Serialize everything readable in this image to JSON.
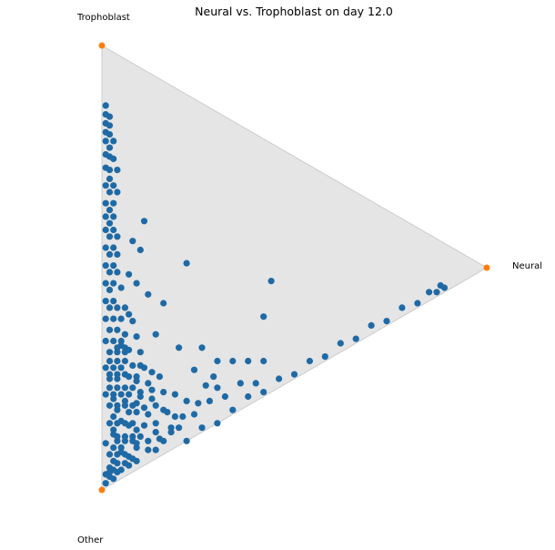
{
  "chart_data": {
    "type": "scatter",
    "title": "Neural vs. Trophoblast on day 12.0",
    "coordinate_system": "ternary barycentric (fractions of Trophoblast, Neural, Other)",
    "vertices": [
      {
        "name": "Trophoblast",
        "color": "#ff7f0e"
      },
      {
        "name": "Neural",
        "color": "#ff7f0e"
      },
      {
        "name": "Other",
        "color": "#ff7f0e"
      }
    ],
    "triangle_fill": "#e5e5e5",
    "triangle_stroke": "#cccccc",
    "point_color": "#1f6aa5",
    "grid": false,
    "legend": "none",
    "points_note": "each point is [Trophoblast, Neural, Other] fraction, summing to 1",
    "points": [
      [
        0.86,
        0.01,
        0.13
      ],
      [
        0.84,
        0.01,
        0.15
      ],
      [
        0.83,
        0.02,
        0.15
      ],
      [
        0.82,
        0.01,
        0.17
      ],
      [
        0.81,
        0.02,
        0.17
      ],
      [
        0.8,
        0.01,
        0.19
      ],
      [
        0.79,
        0.02,
        0.19
      ],
      [
        0.78,
        0.01,
        0.21
      ],
      [
        0.77,
        0.03,
        0.2
      ],
      [
        0.76,
        0.02,
        0.22
      ],
      [
        0.75,
        0.01,
        0.24
      ],
      [
        0.74,
        0.02,
        0.24
      ],
      [
        0.73,
        0.03,
        0.24
      ],
      [
        0.72,
        0.01,
        0.27
      ],
      [
        0.71,
        0.02,
        0.27
      ],
      [
        0.7,
        0.04,
        0.26
      ],
      [
        0.69,
        0.02,
        0.29
      ],
      [
        0.68,
        0.01,
        0.31
      ],
      [
        0.67,
        0.03,
        0.3
      ],
      [
        0.66,
        0.02,
        0.32
      ],
      [
        0.65,
        0.04,
        0.31
      ],
      [
        0.64,
        0.01,
        0.35
      ],
      [
        0.63,
        0.03,
        0.34
      ],
      [
        0.62,
        0.02,
        0.36
      ],
      [
        0.61,
        0.01,
        0.38
      ],
      [
        0.6,
        0.03,
        0.37
      ],
      [
        0.59,
        0.02,
        0.39
      ],
      [
        0.58,
        0.01,
        0.41
      ],
      [
        0.57,
        0.03,
        0.4
      ],
      [
        0.56,
        0.02,
        0.42
      ],
      [
        0.55,
        0.04,
        0.41
      ],
      [
        0.54,
        0.01,
        0.45
      ],
      [
        0.53,
        0.03,
        0.44
      ],
      [
        0.52,
        0.02,
        0.46
      ],
      [
        0.51,
        0.04,
        0.45
      ],
      [
        0.5,
        0.01,
        0.49
      ],
      [
        0.49,
        0.03,
        0.48
      ],
      [
        0.48,
        0.02,
        0.5
      ],
      [
        0.47,
        0.04,
        0.49
      ],
      [
        0.46,
        0.01,
        0.53
      ],
      [
        0.45,
        0.03,
        0.52
      ],
      [
        0.44,
        0.02,
        0.54
      ],
      [
        0.43,
        0.05,
        0.52
      ],
      [
        0.42,
        0.01,
        0.57
      ],
      [
        0.41,
        0.03,
        0.56
      ],
      [
        0.4,
        0.02,
        0.58
      ],
      [
        0.39,
        0.04,
        0.57
      ],
      [
        0.38,
        0.01,
        0.61
      ],
      [
        0.37,
        0.03,
        0.6
      ],
      [
        0.36,
        0.05,
        0.59
      ],
      [
        0.35,
        0.02,
        0.63
      ],
      [
        0.34,
        0.04,
        0.62
      ],
      [
        0.33,
        0.01,
        0.66
      ],
      [
        0.32,
        0.03,
        0.65
      ],
      [
        0.31,
        0.05,
        0.64
      ],
      [
        0.3,
        0.02,
        0.68
      ],
      [
        0.29,
        0.04,
        0.67
      ],
      [
        0.28,
        0.06,
        0.66
      ],
      [
        0.27,
        0.01,
        0.72
      ],
      [
        0.26,
        0.03,
        0.71
      ],
      [
        0.25,
        0.05,
        0.7
      ],
      [
        0.24,
        0.02,
        0.74
      ],
      [
        0.23,
        0.04,
        0.73
      ],
      [
        0.22,
        0.07,
        0.71
      ],
      [
        0.21,
        0.01,
        0.78
      ],
      [
        0.2,
        0.03,
        0.77
      ],
      [
        0.19,
        0.05,
        0.76
      ],
      [
        0.18,
        0.02,
        0.8
      ],
      [
        0.17,
        0.06,
        0.77
      ],
      [
        0.16,
        0.04,
        0.8
      ],
      [
        0.15,
        0.08,
        0.77
      ],
      [
        0.14,
        0.02,
        0.84
      ],
      [
        0.13,
        0.05,
        0.82
      ],
      [
        0.12,
        0.03,
        0.85
      ],
      [
        0.11,
        0.07,
        0.82
      ],
      [
        0.1,
        0.01,
        0.89
      ],
      [
        0.09,
        0.04,
        0.87
      ],
      [
        0.08,
        0.06,
        0.86
      ],
      [
        0.07,
        0.02,
        0.91
      ],
      [
        0.06,
        0.05,
        0.89
      ],
      [
        0.05,
        0.03,
        0.92
      ],
      [
        0.04,
        0.07,
        0.89
      ],
      [
        0.03,
        0.02,
        0.95
      ],
      [
        0.02,
        0.04,
        0.94
      ],
      [
        0.01,
        0.01,
        0.98
      ],
      [
        0.02,
        0.09,
        0.89
      ],
      [
        0.03,
        0.12,
        0.85
      ],
      [
        0.04,
        0.15,
        0.81
      ],
      [
        0.05,
        0.18,
        0.77
      ],
      [
        0.06,
        0.21,
        0.73
      ],
      [
        0.07,
        0.1,
        0.83
      ],
      [
        0.08,
        0.14,
        0.78
      ],
      [
        0.09,
        0.11,
        0.8
      ],
      [
        0.1,
        0.16,
        0.74
      ],
      [
        0.11,
        0.12,
        0.77
      ],
      [
        0.12,
        0.19,
        0.69
      ],
      [
        0.13,
        0.09,
        0.78
      ],
      [
        0.14,
        0.13,
        0.73
      ],
      [
        0.16,
        0.1,
        0.74
      ],
      [
        0.18,
        0.12,
        0.7
      ],
      [
        0.2,
        0.09,
        0.71
      ],
      [
        0.22,
        0.11,
        0.67
      ],
      [
        0.24,
        0.08,
        0.68
      ],
      [
        0.26,
        0.1,
        0.64
      ],
      [
        0.28,
        0.07,
        0.65
      ],
      [
        0.3,
        0.09,
        0.61
      ],
      [
        0.32,
        0.06,
        0.62
      ],
      [
        0.34,
        0.08,
        0.58
      ],
      [
        0.36,
        0.07,
        0.57
      ],
      [
        0.38,
        0.06,
        0.56
      ],
      [
        0.0,
        0.22,
        0.78
      ],
      [
        0.01,
        0.26,
        0.73
      ],
      [
        0.0,
        0.3,
        0.7
      ],
      [
        0.01,
        0.34,
        0.65
      ],
      [
        0.02,
        0.38,
        0.6
      ],
      [
        0.01,
        0.42,
        0.57
      ],
      [
        0.02,
        0.46,
        0.52
      ],
      [
        0.01,
        0.5,
        0.49
      ],
      [
        0.02,
        0.54,
        0.44
      ],
      [
        0.01,
        0.58,
        0.41
      ],
      [
        0.02,
        0.62,
        0.36
      ],
      [
        0.01,
        0.66,
        0.33
      ],
      [
        0.02,
        0.7,
        0.28
      ],
      [
        0.01,
        0.74,
        0.25
      ],
      [
        0.02,
        0.78,
        0.2
      ],
      [
        0.01,
        0.82,
        0.17
      ],
      [
        0.02,
        0.85,
        0.13
      ],
      [
        0.01,
        0.87,
        0.12
      ],
      [
        0.02,
        0.88,
        0.1
      ],
      [
        0.01,
        0.89,
        0.1
      ],
      [
        0.04,
        0.18,
        0.78
      ],
      [
        0.05,
        0.24,
        0.71
      ],
      [
        0.06,
        0.28,
        0.66
      ],
      [
        0.05,
        0.32,
        0.63
      ],
      [
        0.07,
        0.25,
        0.68
      ],
      [
        0.08,
        0.3,
        0.62
      ],
      [
        0.06,
        0.36,
        0.58
      ],
      [
        0.09,
        0.22,
        0.69
      ],
      [
        0.1,
        0.27,
        0.63
      ],
      [
        0.04,
        0.4,
        0.56
      ],
      [
        0.03,
        0.16,
        0.81
      ],
      [
        0.04,
        0.2,
        0.76
      ],
      [
        0.06,
        0.14,
        0.8
      ],
      [
        0.07,
        0.19,
        0.74
      ],
      [
        0.08,
        0.08,
        0.84
      ],
      [
        0.09,
        0.17,
        0.74
      ],
      [
        0.05,
        0.12,
        0.83
      ],
      [
        0.03,
        0.08,
        0.89
      ],
      [
        0.02,
        0.14,
        0.84
      ],
      [
        0.06,
        0.09,
        0.85
      ],
      [
        0.25,
        0.44,
        0.31
      ],
      [
        0.18,
        0.42,
        0.4
      ],
      [
        0.4,
        0.22,
        0.38
      ],
      [
        0.55,
        0.11,
        0.34
      ],
      [
        0.52,
        0.08,
        0.4
      ],
      [
        0.49,
        0.1,
        0.41
      ],
      [
        0.45,
        0.07,
        0.48
      ],
      [
        0.42,
        0.09,
        0.49
      ],
      [
        0.38,
        0.12,
        0.5
      ],
      [
        0.34,
        0.16,
        0.5
      ],
      [
        0.3,
        0.05,
        0.65
      ],
      [
        0.28,
        0.14,
        0.58
      ],
      [
        0.22,
        0.2,
        0.58
      ],
      [
        0.19,
        0.26,
        0.55
      ],
      [
        0.14,
        0.3,
        0.56
      ],
      [
        0.12,
        0.34,
        0.54
      ],
      [
        0.1,
        0.38,
        0.52
      ],
      [
        0.08,
        0.42,
        0.5
      ],
      [
        0.15,
        0.24,
        0.61
      ],
      [
        0.11,
        0.29,
        0.6
      ],
      [
        0.03,
        0.03,
        0.94
      ],
      [
        0.02,
        0.05,
        0.93
      ],
      [
        0.04,
        0.04,
        0.92
      ],
      [
        0.05,
        0.06,
        0.89
      ],
      [
        0.03,
        0.06,
        0.91
      ],
      [
        0.06,
        0.04,
        0.9
      ],
      [
        0.07,
        0.05,
        0.88
      ],
      [
        0.08,
        0.03,
        0.89
      ],
      [
        0.09,
        0.06,
        0.85
      ],
      [
        0.1,
        0.04,
        0.86
      ],
      [
        0.11,
        0.03,
        0.86
      ],
      [
        0.12,
        0.06,
        0.82
      ],
      [
        0.13,
        0.04,
        0.83
      ],
      [
        0.14,
        0.07,
        0.79
      ],
      [
        0.15,
        0.03,
        0.82
      ],
      [
        0.16,
        0.06,
        0.78
      ],
      [
        0.17,
        0.04,
        0.79
      ],
      [
        0.18,
        0.07,
        0.75
      ],
      [
        0.19,
        0.03,
        0.78
      ],
      [
        0.2,
        0.06,
        0.74
      ],
      [
        0.21,
        0.04,
        0.75
      ],
      [
        0.22,
        0.02,
        0.76
      ],
      [
        0.23,
        0.06,
        0.71
      ],
      [
        0.24,
        0.04,
        0.72
      ],
      [
        0.25,
        0.02,
        0.73
      ],
      [
        0.26,
        0.06,
        0.68
      ],
      [
        0.27,
        0.04,
        0.69
      ],
      [
        0.28,
        0.02,
        0.7
      ],
      [
        0.29,
        0.06,
        0.65
      ],
      [
        0.3,
        0.04,
        0.66
      ],
      [
        0.02,
        0.02,
        0.96
      ],
      [
        0.03,
        0.01,
        0.96
      ],
      [
        0.01,
        0.03,
        0.96
      ],
      [
        0.04,
        0.02,
        0.94
      ],
      [
        0.02,
        0.07,
        0.91
      ],
      [
        0.05,
        0.09,
        0.86
      ],
      [
        0.07,
        0.08,
        0.85
      ],
      [
        0.09,
        0.09,
        0.82
      ],
      [
        0.11,
        0.08,
        0.81
      ],
      [
        0.13,
        0.11,
        0.76
      ],
      [
        0.15,
        0.09,
        0.76
      ],
      [
        0.17,
        0.1,
        0.73
      ],
      [
        0.19,
        0.08,
        0.73
      ],
      [
        0.21,
        0.09,
        0.7
      ],
      [
        0.23,
        0.1,
        0.67
      ],
      [
        0.16,
        0.13,
        0.71
      ],
      [
        0.18,
        0.15,
        0.67
      ],
      [
        0.2,
        0.13,
        0.67
      ],
      [
        0.14,
        0.16,
        0.7
      ],
      [
        0.12,
        0.14,
        0.74
      ]
    ]
  }
}
